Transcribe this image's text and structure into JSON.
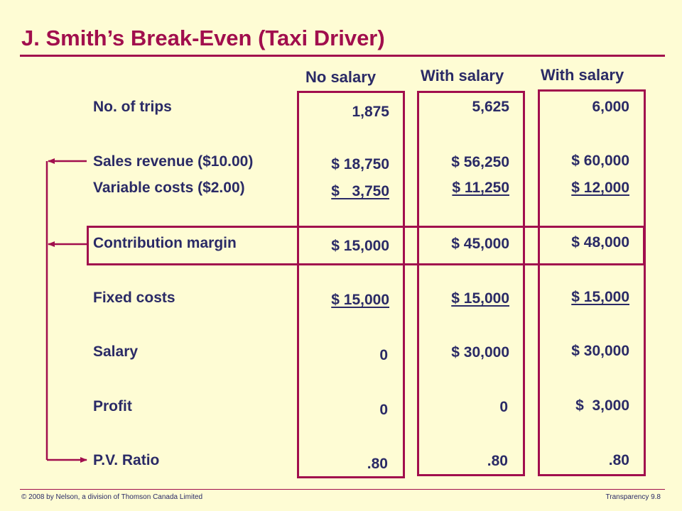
{
  "title": "J. Smith’s Break-Even (Taxi Driver)",
  "footer": {
    "left": "© 2008 by Nelson, a division of Thomson Canada Limited",
    "right": "Transparency 9.8"
  },
  "columns": [
    "No salary",
    "With salary",
    "With salary"
  ],
  "rows": [
    {
      "label": "No. of trips",
      "values": [
        "1,875",
        "5,625",
        "6,000"
      ]
    },
    {
      "label": "Sales revenue ($10.00)",
      "values": [
        "$ 18,750",
        "$ 56,250",
        "$ 60,000"
      ]
    },
    {
      "label": "Variable costs ($2.00)",
      "values": [
        "$   3,750",
        "$ 11,250",
        "$ 12,000"
      ]
    },
    {
      "label": "Contribution margin",
      "values": [
        "$ 15,000",
        "$ 45,000",
        "$ 48,000"
      ]
    },
    {
      "label": "Fixed costs",
      "values": [
        "$ 15,000",
        "$ 15,000",
        "$ 15,000"
      ]
    },
    {
      "label": "Salary",
      "values": [
        "0",
        "$ 30,000",
        "$ 30,000"
      ]
    },
    {
      "label": "Profit",
      "values": [
        "0",
        "0",
        "$  3,000"
      ]
    },
    {
      "label": "P.V. Ratio",
      "values": [
        ".80",
        ".80",
        ".80"
      ]
    }
  ]
}
